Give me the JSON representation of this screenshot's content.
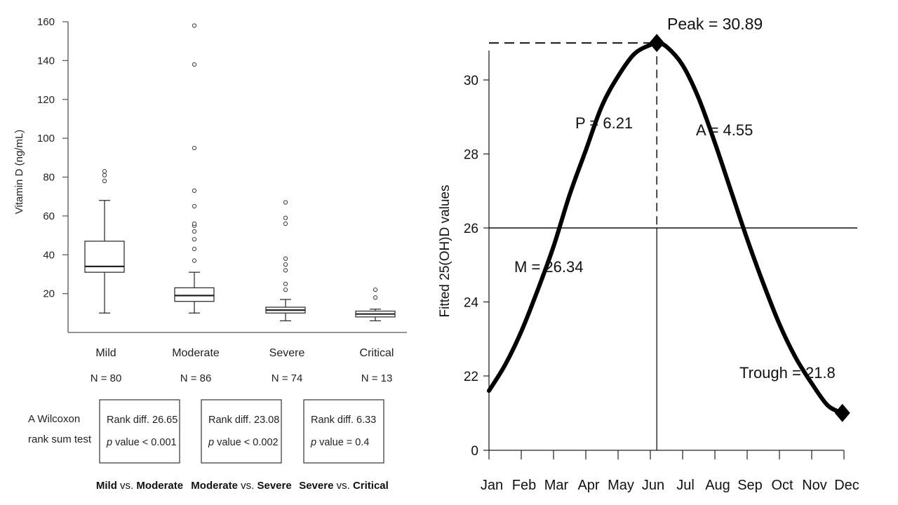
{
  "chart_data": [
    {
      "type": "box",
      "ylabel": "Vitamin D (ng/mL)",
      "ylim": [
        0,
        160
      ],
      "yticks": [
        20,
        40,
        60,
        80,
        100,
        120,
        140,
        160
      ],
      "categories": [
        "Mild",
        "Moderate",
        "Severe",
        "Critical"
      ],
      "counts": [
        "N = 80",
        "N = 86",
        "N = 74",
        "N = 13"
      ],
      "boxes": [
        {
          "whisker_low": 10,
          "q1": 31,
          "median": 34,
          "q3": 47,
          "whisker_high": 68,
          "outliers": [
            78,
            81,
            83
          ]
        },
        {
          "whisker_low": 10,
          "q1": 16,
          "median": 19,
          "q3": 23,
          "whisker_high": 31,
          "outliers": [
            37,
            43,
            48,
            52,
            55,
            56,
            65,
            73,
            95,
            138,
            158
          ]
        },
        {
          "whisker_low": 6,
          "q1": 10,
          "median": 11.5,
          "q3": 13,
          "whisker_high": 17,
          "outliers": [
            22,
            25,
            32,
            35,
            38,
            56,
            59,
            67
          ]
        },
        {
          "whisker_low": 6,
          "q1": 8,
          "median": 9.5,
          "q3": 11,
          "whisker_high": 12,
          "outliers": [
            18,
            22
          ]
        }
      ],
      "test_label": [
        "A Wilcoxon",
        "rank sum test"
      ],
      "tests": [
        {
          "rank": "Rank diff. 26.65",
          "p_italic": "p",
          "p_rest": " value < 0.001",
          "g1": "Mild",
          "vs": " vs. ",
          "g2": "Moderate"
        },
        {
          "rank": "Rank diff. 23.08",
          "p_italic": "p",
          "p_rest": " value < 0.002",
          "g1": "Moderate",
          "vs": " vs. ",
          "g2": "Severe"
        },
        {
          "rank": "Rank diff. 6.33",
          "p_italic": "p",
          "p_rest": " value = 0.4",
          "g1": "Severe",
          "vs": " vs. ",
          "g2": "Critical"
        }
      ]
    },
    {
      "type": "line",
      "ylabel": "Fitted 25(OH)D values",
      "yticks": [
        0,
        22,
        24,
        26,
        28,
        30
      ],
      "x": [
        "Jan",
        "Feb",
        "Mar",
        "Apr",
        "May",
        "Jun",
        "Jul",
        "Aug",
        "Sep",
        "Oct",
        "Nov",
        "Dec"
      ],
      "mesor": 26,
      "peak_month": 6.2,
      "curve": [
        {
          "x": 1.0,
          "y": 21.6
        },
        {
          "x": 1.5,
          "y": 22.3
        },
        {
          "x": 2.0,
          "y": 23.2
        },
        {
          "x": 2.5,
          "y": 24.3
        },
        {
          "x": 3.0,
          "y": 25.5
        },
        {
          "x": 3.5,
          "y": 26.9
        },
        {
          "x": 4.0,
          "y": 28.1
        },
        {
          "x": 4.5,
          "y": 29.3
        },
        {
          "x": 5.0,
          "y": 30.1
        },
        {
          "x": 5.5,
          "y": 30.7
        },
        {
          "x": 6.0,
          "y": 30.95
        },
        {
          "x": 6.2,
          "y": 31.0
        },
        {
          "x": 6.5,
          "y": 30.9
        },
        {
          "x": 7.0,
          "y": 30.4
        },
        {
          "x": 7.5,
          "y": 29.5
        },
        {
          "x": 8.0,
          "y": 28.3
        },
        {
          "x": 8.5,
          "y": 27.0
        },
        {
          "x": 9.0,
          "y": 25.7
        },
        {
          "x": 9.5,
          "y": 24.5
        },
        {
          "x": 10.0,
          "y": 23.4
        },
        {
          "x": 10.5,
          "y": 22.5
        },
        {
          "x": 11.0,
          "y": 21.8
        },
        {
          "x": 11.5,
          "y": 21.2
        },
        {
          "x": 11.95,
          "y": 21.0
        }
      ],
      "annotations": {
        "peak": "Peak = 30.89",
        "phase": "P = 6.21",
        "amplitude": "A = 4.55",
        "mesor": "M = 26.34",
        "trough": "Trough = 21.8"
      }
    }
  ]
}
